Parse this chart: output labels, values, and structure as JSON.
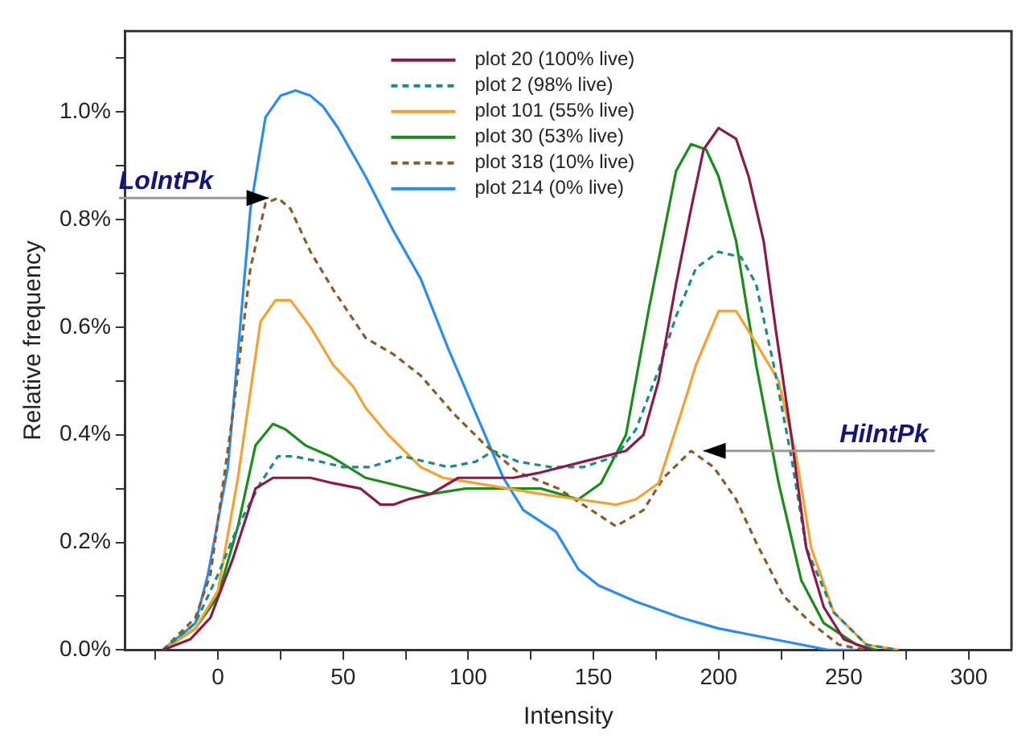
{
  "chart_data": {
    "type": "line",
    "xlabel": "Intensity",
    "ylabel": "Relative frequency",
    "legend": "top",
    "xlim": [
      -37,
      317
    ],
    "ylim": [
      0,
      1.15
    ],
    "xticks": [
      {
        "value": -25,
        "label": null
      },
      0,
      {
        "value": 25,
        "label": null
      },
      50,
      {
        "value": 75,
        "label": null
      },
      100,
      {
        "value": 125,
        "label": null
      },
      150,
      {
        "value": 175,
        "label": null
      },
      200,
      {
        "value": 225,
        "label": null
      },
      250,
      {
        "value": 275,
        "label": null
      },
      300
    ],
    "yticks": [
      {
        "value": 0,
        "label": "0.0%"
      },
      {
        "value": 0.1,
        "label": null
      },
      {
        "value": 0.2,
        "label": "0.2%"
      },
      {
        "value": 0.3,
        "label": null
      },
      {
        "value": 0.4,
        "label": "0.4%"
      },
      {
        "value": 0.5,
        "label": null
      },
      {
        "value": 0.6,
        "label": "0.6%"
      },
      {
        "value": 0.7,
        "label": null
      },
      {
        "value": 0.8,
        "label": "0.8%"
      },
      {
        "value": 0.9,
        "label": null
      },
      {
        "value": 1.0,
        "label": "1.0%"
      },
      {
        "value": 1.1,
        "label": null
      }
    ],
    "annotations": [
      {
        "text": "LoIntPk",
        "x": 23,
        "y": 0.84
      },
      {
        "text": "HiIntPk",
        "x": 190,
        "y": 0.37
      }
    ],
    "series": [
      {
        "name": "plot 20 (100% live)",
        "color": "#8b1a4a",
        "line_style": "solid",
        "x": [
          -22,
          -11,
          -3,
          6,
          15,
          22,
          28,
          37,
          46,
          57,
          65,
          70,
          76,
          85,
          96,
          107,
          118,
          129,
          146,
          163,
          170,
          176,
          183,
          189,
          194,
          200,
          207,
          212,
          218,
          223,
          229,
          235,
          242,
          250,
          261
        ],
        "values": [
          0,
          0.02,
          0.06,
          0.17,
          0.3,
          0.32,
          0.32,
          0.32,
          0.31,
          0.3,
          0.27,
          0.27,
          0.28,
          0.29,
          0.32,
          0.32,
          0.32,
          0.33,
          0.35,
          0.37,
          0.4,
          0.5,
          0.68,
          0.82,
          0.93,
          0.97,
          0.95,
          0.88,
          0.76,
          0.59,
          0.4,
          0.19,
          0.08,
          0.02,
          0
        ]
      },
      {
        "name": "plot 2 (98% live)",
        "color": "#1a8a8a",
        "line_style": "dashed",
        "x": [
          -22,
          -9,
          0,
          8,
          17,
          24,
          30,
          41,
          50,
          61,
          74,
          83,
          92,
          103,
          110,
          120,
          133,
          146,
          159,
          167,
          176,
          183,
          191,
          200,
          209,
          215,
          222,
          229,
          235,
          246,
          259,
          272
        ],
        "values": [
          0,
          0.05,
          0.14,
          0.23,
          0.31,
          0.36,
          0.36,
          0.35,
          0.34,
          0.34,
          0.36,
          0.35,
          0.34,
          0.35,
          0.37,
          0.35,
          0.34,
          0.34,
          0.36,
          0.41,
          0.52,
          0.62,
          0.71,
          0.74,
          0.73,
          0.68,
          0.53,
          0.36,
          0.19,
          0.07,
          0.01,
          0
        ]
      },
      {
        "name": "plot 101 (55% live)",
        "color": "#f5a030",
        "line_style": "solid",
        "x": [
          -22,
          -9,
          0,
          8,
          17,
          23,
          29,
          37,
          46,
          54,
          59,
          68,
          81,
          90,
          103,
          116,
          129,
          144,
          159,
          167,
          176,
          185,
          191,
          200,
          207,
          215,
          224,
          231,
          237,
          246,
          259,
          272
        ],
        "values": [
          0,
          0.04,
          0.11,
          0.32,
          0.61,
          0.65,
          0.65,
          0.6,
          0.53,
          0.49,
          0.45,
          0.4,
          0.34,
          0.32,
          0.31,
          0.3,
          0.29,
          0.28,
          0.27,
          0.28,
          0.31,
          0.44,
          0.53,
          0.63,
          0.63,
          0.57,
          0.5,
          0.36,
          0.19,
          0.07,
          0.01,
          0
        ]
      },
      {
        "name": "plot 30 (53% live)",
        "color": "#1a8c1a",
        "line_style": "solid",
        "x": [
          -22,
          -9,
          0,
          8,
          15,
          22,
          27,
          35,
          45,
          59,
          68,
          85,
          99,
          111,
          129,
          144,
          153,
          163,
          172,
          183,
          189,
          195,
          200,
          207,
          215,
          224,
          233,
          242,
          255,
          263
        ],
        "values": [
          0,
          0.04,
          0.1,
          0.23,
          0.38,
          0.42,
          0.41,
          0.38,
          0.36,
          0.32,
          0.31,
          0.29,
          0.3,
          0.3,
          0.3,
          0.28,
          0.31,
          0.4,
          0.63,
          0.89,
          0.94,
          0.93,
          0.88,
          0.76,
          0.53,
          0.31,
          0.13,
          0.05,
          0.01,
          0
        ]
      },
      {
        "name": "plot 318 (10% live)",
        "color": "#8b5a2b",
        "line_style": "dashed",
        "x": [
          -22,
          -9,
          -3,
          6,
          13,
          19,
          24,
          29,
          37,
          46,
          59,
          70,
          81,
          94,
          107,
          120,
          136,
          159,
          170,
          178,
          189,
          198,
          207,
          215,
          226,
          237,
          248,
          259
        ],
        "values": [
          0,
          0.06,
          0.14,
          0.44,
          0.71,
          0.83,
          0.84,
          0.82,
          0.74,
          0.67,
          0.58,
          0.55,
          0.51,
          0.44,
          0.38,
          0.33,
          0.3,
          0.23,
          0.26,
          0.32,
          0.37,
          0.34,
          0.28,
          0.2,
          0.1,
          0.05,
          0.01,
          0
        ]
      },
      {
        "name": "plot 214 (0% live)",
        "color": "#2a8cf0",
        "line_style": "solid",
        "x": [
          -22,
          -9,
          -4,
          4,
          13,
          19,
          25,
          31,
          37,
          42,
          48,
          59,
          70,
          81,
          92,
          103,
          114,
          122,
          135,
          144,
          152,
          167,
          185,
          200,
          222,
          244,
          255
        ],
        "values": [
          0,
          0.05,
          0.14,
          0.34,
          0.82,
          0.99,
          1.03,
          1.04,
          1.03,
          1.01,
          0.97,
          0.88,
          0.78,
          0.69,
          0.56,
          0.44,
          0.32,
          0.26,
          0.22,
          0.15,
          0.12,
          0.09,
          0.06,
          0.04,
          0.02,
          0,
          0
        ]
      }
    ]
  }
}
